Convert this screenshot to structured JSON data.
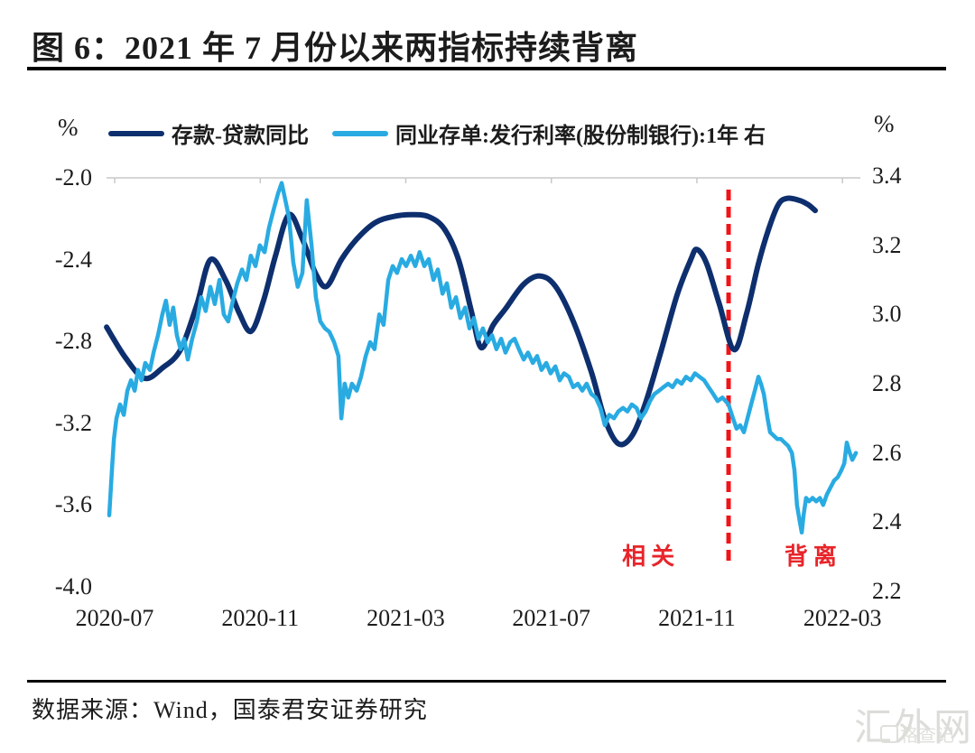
{
  "header": {
    "title": "图 6：2021 年 7 月份以来两指标持续背离"
  },
  "footer": {
    "source": "数据来源：Wind，国泰君安证券研究"
  },
  "watermark": {
    "main": "汇外网",
    "overlay": "格查记"
  },
  "chart_data": {
    "type": "line",
    "title": "图 6：2021 年 7 月份以来两指标持续背离",
    "grid_color": "#c8c8c8",
    "x_axis": {
      "labels": [
        "2020-07",
        "2020-11",
        "2021-03",
        "2021-07",
        "2021-11",
        "2022-03"
      ],
      "label_month_positions": [
        0,
        4,
        8,
        12,
        16,
        20
      ]
    },
    "left_axis": {
      "unit": "%",
      "min": -4.0,
      "max": -2.0,
      "ticks": [
        -2.0,
        -2.4,
        -2.8,
        -3.2,
        -3.6,
        -4.0
      ]
    },
    "right_axis": {
      "unit": "%",
      "min": 2.2,
      "max": 3.4,
      "ticks": [
        3.4,
        3.2,
        3.0,
        2.8,
        2.6,
        2.4,
        2.2
      ]
    },
    "legend_position": "top",
    "series": [
      {
        "name": "存款-贷款同比",
        "axis": "left",
        "color": "#0e2f6e",
        "smooth": true,
        "points": [
          [
            -0.22,
            -2.73
          ],
          [
            0.3,
            -2.88
          ],
          [
            0.82,
            -2.98
          ],
          [
            1.31,
            -2.93
          ],
          [
            1.81,
            -2.84
          ],
          [
            2.26,
            -2.62
          ],
          [
            2.63,
            -2.4
          ],
          [
            3.05,
            -2.5
          ],
          [
            3.42,
            -2.66
          ],
          [
            3.75,
            -2.75
          ],
          [
            4.09,
            -2.6
          ],
          [
            4.42,
            -2.38
          ],
          [
            4.79,
            -2.18
          ],
          [
            5.16,
            -2.3
          ],
          [
            5.53,
            -2.47
          ],
          [
            5.83,
            -2.53
          ],
          [
            6.23,
            -2.4
          ],
          [
            6.65,
            -2.3
          ],
          [
            7.15,
            -2.22
          ],
          [
            7.64,
            -2.19
          ],
          [
            8.14,
            -2.18
          ],
          [
            8.63,
            -2.19
          ],
          [
            9.06,
            -2.25
          ],
          [
            9.45,
            -2.4
          ],
          [
            9.8,
            -2.65
          ],
          [
            10.07,
            -2.83
          ],
          [
            10.4,
            -2.72
          ],
          [
            10.74,
            -2.64
          ],
          [
            11.24,
            -2.52
          ],
          [
            11.69,
            -2.48
          ],
          [
            12.11,
            -2.53
          ],
          [
            12.6,
            -2.7
          ],
          [
            13.1,
            -2.95
          ],
          [
            13.47,
            -3.18
          ],
          [
            13.84,
            -3.3
          ],
          [
            14.22,
            -3.26
          ],
          [
            14.59,
            -3.1
          ],
          [
            15.01,
            -2.85
          ],
          [
            15.46,
            -2.57
          ],
          [
            15.83,
            -2.4
          ],
          [
            16.0,
            -2.35
          ],
          [
            16.27,
            -2.42
          ],
          [
            16.62,
            -2.62
          ],
          [
            17.02,
            -2.84
          ],
          [
            17.37,
            -2.66
          ],
          [
            17.69,
            -2.42
          ],
          [
            17.99,
            -2.24
          ],
          [
            18.24,
            -2.13
          ],
          [
            18.48,
            -2.1
          ],
          [
            18.81,
            -2.11
          ],
          [
            19.05,
            -2.13
          ],
          [
            19.25,
            -2.16
          ]
        ]
      },
      {
        "name": "同业存单:发行利率(股份制银行):1年 右",
        "axis": "right",
        "color": "#29abe2",
        "smooth": false,
        "points": [
          [
            -0.15,
            2.42
          ],
          [
            -0.07,
            2.56
          ],
          [
            -0.02,
            2.64
          ],
          [
            0.05,
            2.7
          ],
          [
            0.15,
            2.74
          ],
          [
            0.25,
            2.71
          ],
          [
            0.35,
            2.78
          ],
          [
            0.45,
            2.81
          ],
          [
            0.55,
            2.78
          ],
          [
            0.64,
            2.84
          ],
          [
            0.74,
            2.81
          ],
          [
            0.84,
            2.86
          ],
          [
            0.97,
            2.84
          ],
          [
            1.07,
            2.89
          ],
          [
            1.19,
            2.94
          ],
          [
            1.31,
            3.0
          ],
          [
            1.41,
            3.04
          ],
          [
            1.51,
            2.97
          ],
          [
            1.61,
            3.02
          ],
          [
            1.71,
            2.94
          ],
          [
            1.81,
            2.9
          ],
          [
            1.91,
            2.93
          ],
          [
            2.01,
            2.87
          ],
          [
            2.13,
            2.93
          ],
          [
            2.26,
            2.98
          ],
          [
            2.38,
            3.05
          ],
          [
            2.5,
            3.01
          ],
          [
            2.63,
            3.08
          ],
          [
            2.75,
            3.03
          ],
          [
            2.88,
            3.1
          ],
          [
            3.0,
            3.0
          ],
          [
            3.12,
            2.98
          ],
          [
            3.25,
            3.04
          ],
          [
            3.37,
            3.09
          ],
          [
            3.5,
            3.13
          ],
          [
            3.62,
            3.1
          ],
          [
            3.74,
            3.17
          ],
          [
            3.87,
            3.14
          ],
          [
            3.99,
            3.2
          ],
          [
            4.12,
            3.18
          ],
          [
            4.24,
            3.25
          ],
          [
            4.36,
            3.3
          ],
          [
            4.49,
            3.35
          ],
          [
            4.59,
            3.38
          ],
          [
            4.69,
            3.33
          ],
          [
            4.79,
            3.28
          ],
          [
            4.91,
            3.15
          ],
          [
            5.03,
            3.08
          ],
          [
            5.16,
            3.12
          ],
          [
            5.28,
            3.33
          ],
          [
            5.41,
            3.2
          ],
          [
            5.53,
            3.05
          ],
          [
            5.65,
            2.98
          ],
          [
            5.78,
            2.96
          ],
          [
            5.9,
            2.95
          ],
          [
            6.03,
            2.92
          ],
          [
            6.15,
            2.88
          ],
          [
            6.23,
            2.7
          ],
          [
            6.32,
            2.8
          ],
          [
            6.42,
            2.76
          ],
          [
            6.52,
            2.8
          ],
          [
            6.65,
            2.78
          ],
          [
            6.77,
            2.82
          ],
          [
            6.9,
            2.88
          ],
          [
            7.02,
            2.92
          ],
          [
            7.14,
            2.9
          ],
          [
            7.27,
            3.0
          ],
          [
            7.39,
            2.97
          ],
          [
            7.52,
            3.1
          ],
          [
            7.64,
            3.14
          ],
          [
            7.76,
            3.12
          ],
          [
            7.89,
            3.16
          ],
          [
            8.01,
            3.14
          ],
          [
            8.14,
            3.17
          ],
          [
            8.26,
            3.14
          ],
          [
            8.38,
            3.18
          ],
          [
            8.51,
            3.14
          ],
          [
            8.63,
            3.16
          ],
          [
            8.76,
            3.1
          ],
          [
            8.88,
            3.13
          ],
          [
            9.01,
            3.06
          ],
          [
            9.13,
            3.09
          ],
          [
            9.25,
            3.02
          ],
          [
            9.38,
            3.05
          ],
          [
            9.5,
            2.99
          ],
          [
            9.63,
            3.02
          ],
          [
            9.75,
            2.96
          ],
          [
            9.87,
            2.99
          ],
          [
            10.0,
            2.93
          ],
          [
            10.12,
            2.96
          ],
          [
            10.25,
            2.92
          ],
          [
            10.37,
            2.94
          ],
          [
            10.49,
            2.9
          ],
          [
            10.62,
            2.93
          ],
          [
            10.74,
            2.89
          ],
          [
            10.87,
            2.92
          ],
          [
            10.99,
            2.93
          ],
          [
            11.11,
            2.9
          ],
          [
            11.24,
            2.87
          ],
          [
            11.36,
            2.89
          ],
          [
            11.49,
            2.86
          ],
          [
            11.61,
            2.88
          ],
          [
            11.73,
            2.84
          ],
          [
            11.86,
            2.86
          ],
          [
            11.98,
            2.83
          ],
          [
            12.11,
            2.85
          ],
          [
            12.23,
            2.81
          ],
          [
            12.35,
            2.83
          ],
          [
            12.48,
            2.82
          ],
          [
            12.6,
            2.79
          ],
          [
            12.73,
            2.8
          ],
          [
            12.85,
            2.78
          ],
          [
            12.97,
            2.8
          ],
          [
            13.1,
            2.77
          ],
          [
            13.22,
            2.76
          ],
          [
            13.35,
            2.73
          ],
          [
            13.47,
            2.68
          ],
          [
            13.59,
            2.71
          ],
          [
            13.72,
            2.7
          ],
          [
            13.84,
            2.72
          ],
          [
            13.97,
            2.73
          ],
          [
            14.09,
            2.72
          ],
          [
            14.21,
            2.74
          ],
          [
            14.34,
            2.73
          ],
          [
            14.46,
            2.7
          ],
          [
            14.59,
            2.72
          ],
          [
            14.71,
            2.75
          ],
          [
            14.83,
            2.77
          ],
          [
            14.96,
            2.78
          ],
          [
            15.08,
            2.79
          ],
          [
            15.21,
            2.8
          ],
          [
            15.33,
            2.79
          ],
          [
            15.45,
            2.81
          ],
          [
            15.58,
            2.8
          ],
          [
            15.7,
            2.82
          ],
          [
            15.83,
            2.81
          ],
          [
            15.95,
            2.83
          ],
          [
            16.07,
            2.82
          ],
          [
            16.2,
            2.81
          ],
          [
            16.32,
            2.79
          ],
          [
            16.45,
            2.77
          ],
          [
            16.57,
            2.75
          ],
          [
            16.7,
            2.76
          ],
          [
            16.87,
            2.74
          ],
          [
            16.99,
            2.7
          ],
          [
            17.09,
            2.67
          ],
          [
            17.19,
            2.68
          ],
          [
            17.29,
            2.66
          ],
          [
            17.39,
            2.7
          ],
          [
            17.49,
            2.74
          ],
          [
            17.59,
            2.78
          ],
          [
            17.69,
            2.82
          ],
          [
            17.76,
            2.8
          ],
          [
            17.84,
            2.77
          ],
          [
            17.94,
            2.7
          ],
          [
            18.01,
            2.66
          ],
          [
            18.11,
            2.65
          ],
          [
            18.21,
            2.64
          ],
          [
            18.31,
            2.64
          ],
          [
            18.41,
            2.63
          ],
          [
            18.51,
            2.62
          ],
          [
            18.61,
            2.6
          ],
          [
            18.68,
            2.55
          ],
          [
            18.75,
            2.45
          ],
          [
            18.83,
            2.4
          ],
          [
            18.88,
            2.37
          ],
          [
            18.93,
            2.42
          ],
          [
            19.0,
            2.47
          ],
          [
            19.08,
            2.46
          ],
          [
            19.18,
            2.47
          ],
          [
            19.28,
            2.46
          ],
          [
            19.38,
            2.47
          ],
          [
            19.47,
            2.45
          ],
          [
            19.57,
            2.48
          ],
          [
            19.67,
            2.5
          ],
          [
            19.77,
            2.52
          ],
          [
            19.87,
            2.53
          ],
          [
            19.97,
            2.55
          ],
          [
            20.05,
            2.57
          ],
          [
            20.12,
            2.63
          ],
          [
            20.2,
            2.6
          ],
          [
            20.27,
            2.58
          ],
          [
            20.37,
            2.6
          ]
        ]
      }
    ],
    "annotations": {
      "divider": {
        "month": 16.87,
        "color": "#f01418"
      },
      "labels": [
        {
          "text": "相关",
          "month": 14.74
        },
        {
          "text": "背离",
          "month": 19.2
        }
      ],
      "label_color": "#e8252a"
    }
  }
}
